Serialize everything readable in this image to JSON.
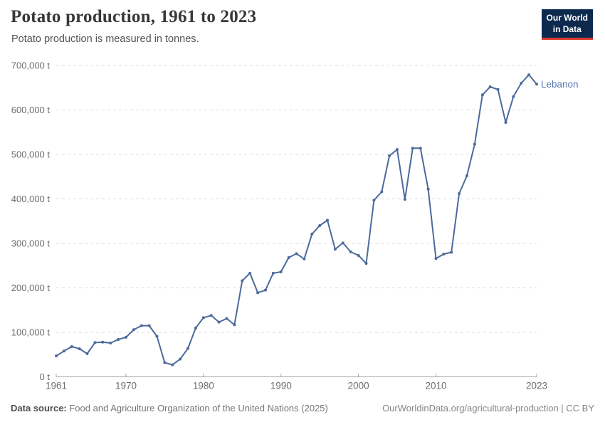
{
  "header": {
    "title": "Potato production, 1961 to 2023",
    "subtitle": "Potato production is measured in tonnes.",
    "logo": {
      "line1": "Our World",
      "line2": "in Data",
      "bg_color": "#0d2a4e",
      "accent_color": "#dc3a2f"
    }
  },
  "chart_data": {
    "type": "line",
    "title": "Potato production, 1961 to 2023",
    "entity": "Lebanon",
    "unit": "tonnes",
    "line_color": "#4C6A9C",
    "label_color": "#5878AE",
    "grid": "horizontal-dashed",
    "legend_position": "end-of-line",
    "ylim": [
      0,
      700000
    ],
    "yticks": [
      {
        "value": 0,
        "label": "0 t"
      },
      {
        "value": 100000,
        "label": "100,000 t"
      },
      {
        "value": 200000,
        "label": "200,000 t"
      },
      {
        "value": 300000,
        "label": "300,000 t"
      },
      {
        "value": 400000,
        "label": "400,000 t"
      },
      {
        "value": 500000,
        "label": "500,000 t"
      },
      {
        "value": 600000,
        "label": "600,000 t"
      },
      {
        "value": 700000,
        "label": "700,000 t"
      }
    ],
    "xticks": [
      1961,
      1970,
      1980,
      1990,
      2000,
      2010,
      2023
    ],
    "x": [
      1961,
      1962,
      1963,
      1964,
      1965,
      1966,
      1967,
      1968,
      1969,
      1970,
      1971,
      1972,
      1973,
      1974,
      1975,
      1976,
      1977,
      1978,
      1979,
      1980,
      1981,
      1982,
      1983,
      1984,
      1985,
      1986,
      1987,
      1988,
      1989,
      1990,
      1991,
      1992,
      1993,
      1994,
      1995,
      1996,
      1997,
      1998,
      1999,
      2000,
      2001,
      2002,
      2003,
      2004,
      2005,
      2006,
      2007,
      2008,
      2009,
      2010,
      2011,
      2012,
      2013,
      2014,
      2015,
      2016,
      2017,
      2018,
      2019,
      2020,
      2021,
      2022,
      2023
    ],
    "values": [
      47000,
      58000,
      68000,
      63000,
      52000,
      77000,
      78000,
      76000,
      84000,
      89000,
      106000,
      115000,
      115000,
      91000,
      32000,
      27000,
      40000,
      64000,
      110000,
      133000,
      138000,
      123000,
      131000,
      117000,
      216000,
      233000,
      189000,
      195000,
      233000,
      236000,
      268000,
      277000,
      265000,
      321000,
      340000,
      352000,
      287000,
      301000,
      281000,
      273000,
      255000,
      397000,
      416000,
      497000,
      511000,
      399000,
      514000,
      514000,
      422000,
      266000,
      276000,
      280000,
      412000,
      452000,
      523000,
      634000,
      652000,
      646000,
      572000,
      630000,
      660000,
      679000,
      658000
    ]
  },
  "footer": {
    "source_label": "Data source:",
    "source_text": " Food and Agriculture Organization of the United Nations (2025)",
    "attribution": "OurWorldinData.org/agricultural-production | CC BY"
  }
}
